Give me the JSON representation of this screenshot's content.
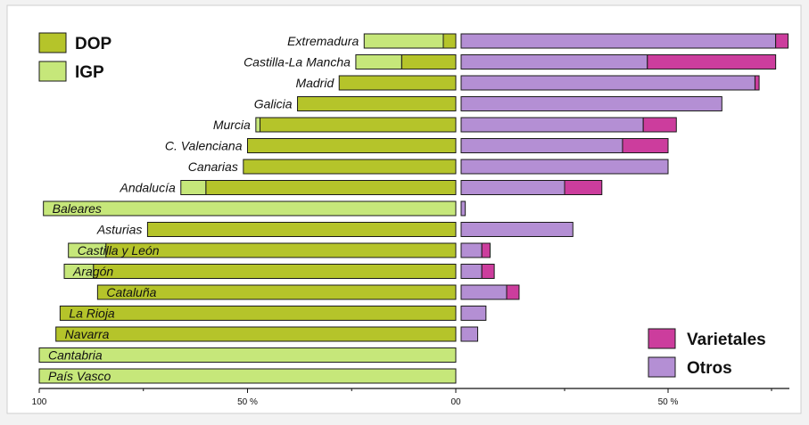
{
  "chart_data": {
    "type": "bar",
    "left_legend": [
      {
        "name": "DOP",
        "color": "#b5c42a"
      },
      {
        "name": "IGP",
        "color": "#c6e77a"
      }
    ],
    "right_legend": [
      {
        "name": "Varietales",
        "color": "#cc3d9d"
      },
      {
        "name": "Otros",
        "color": "#b48fd4"
      }
    ],
    "left_axis": {
      "ticks": [
        {
          "value": 100,
          "label": "100"
        },
        {
          "value": 50,
          "label": "50 %"
        },
        {
          "value": 0,
          "label": "00"
        }
      ],
      "range": [
        0,
        100
      ]
    },
    "right_axis": {
      "ticks": [
        {
          "value": 50,
          "label": "50 %"
        }
      ],
      "range": [
        0,
        80
      ]
    },
    "categories": [
      "Extremadura",
      "Castilla-La Mancha",
      "Madrid",
      "Galicia",
      "Murcia",
      "C. Valenciana",
      "Canarias",
      "Andalucía",
      "Baleares",
      "Asturias",
      "Castilla y León",
      "Aragón",
      "Cataluña",
      "La Rioja",
      "Navarra",
      "Cantabria",
      "País Vasco"
    ],
    "series": [
      {
        "name": "DOP",
        "values": [
          3,
          13,
          28,
          38,
          47,
          50,
          51,
          60,
          0,
          74,
          84,
          87,
          86,
          95,
          96,
          0,
          0
        ]
      },
      {
        "name": "IGP",
        "values": [
          19,
          11,
          0,
          0,
          1,
          0,
          0,
          6,
          99,
          0,
          9,
          7,
          0,
          0,
          0,
          100,
          100
        ]
      },
      {
        "name": "Otros",
        "values": [
          76,
          45,
          71,
          63,
          44,
          39,
          50,
          25,
          1,
          27,
          5,
          5,
          11,
          6,
          4,
          0,
          0
        ]
      },
      {
        "name": "Varietales",
        "values": [
          3,
          31,
          1,
          0,
          8,
          11,
          0,
          9,
          0,
          0,
          2,
          3,
          3,
          0,
          0,
          0,
          0
        ]
      }
    ],
    "grid": false
  }
}
